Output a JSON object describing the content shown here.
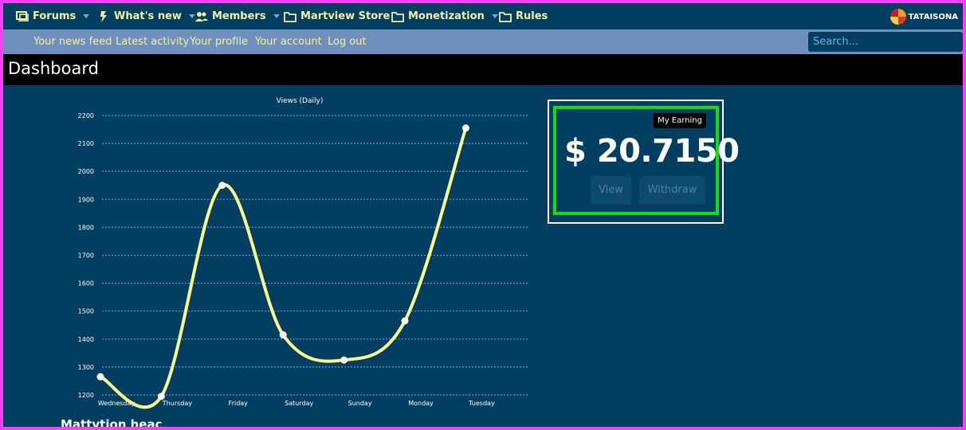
{
  "nav": {
    "items": [
      {
        "label": "Forums",
        "icon": "forums-icon",
        "caret": true
      },
      {
        "label": "What's new",
        "icon": "lightning-icon",
        "caret": true
      },
      {
        "label": "Members",
        "icon": "members-icon",
        "caret": true
      },
      {
        "label": "Martview Store",
        "icon": "folder-icon",
        "caret": false
      },
      {
        "label": "Monetization",
        "icon": "folder-icon",
        "caret": true
      },
      {
        "label": "Rules",
        "icon": "folder-icon",
        "caret": false
      }
    ],
    "brand": "TATAISONA"
  },
  "subnav": {
    "links": [
      "Your news feed",
      "Latest activity",
      "Your profile",
      "Your account",
      "Log out"
    ],
    "search_placeholder": "Search..."
  },
  "page": {
    "title": "Dashboard"
  },
  "earning": {
    "badge": "My Earning",
    "amount": "$ 20.7150",
    "view_label": "View",
    "withdraw_label": "Withdraw"
  },
  "bottom_text": "Mattvtion heac",
  "chart_data": {
    "type": "line",
    "title": "Views (Daily)",
    "categories": [
      "Wednesday",
      "Thursday",
      "Friday",
      "Saturday",
      "Sunday",
      "Monday",
      "Tuesday"
    ],
    "values": [
      1265,
      1195,
      1950,
      1415,
      1325,
      1465,
      2155
    ],
    "ylim": [
      1200,
      2200
    ],
    "yticks": [
      1200,
      1300,
      1400,
      1500,
      1600,
      1700,
      1800,
      1900,
      2000,
      2100,
      2200
    ],
    "grid": true,
    "line_color": "#fdfa8e",
    "marker_color": "#ffffff"
  }
}
